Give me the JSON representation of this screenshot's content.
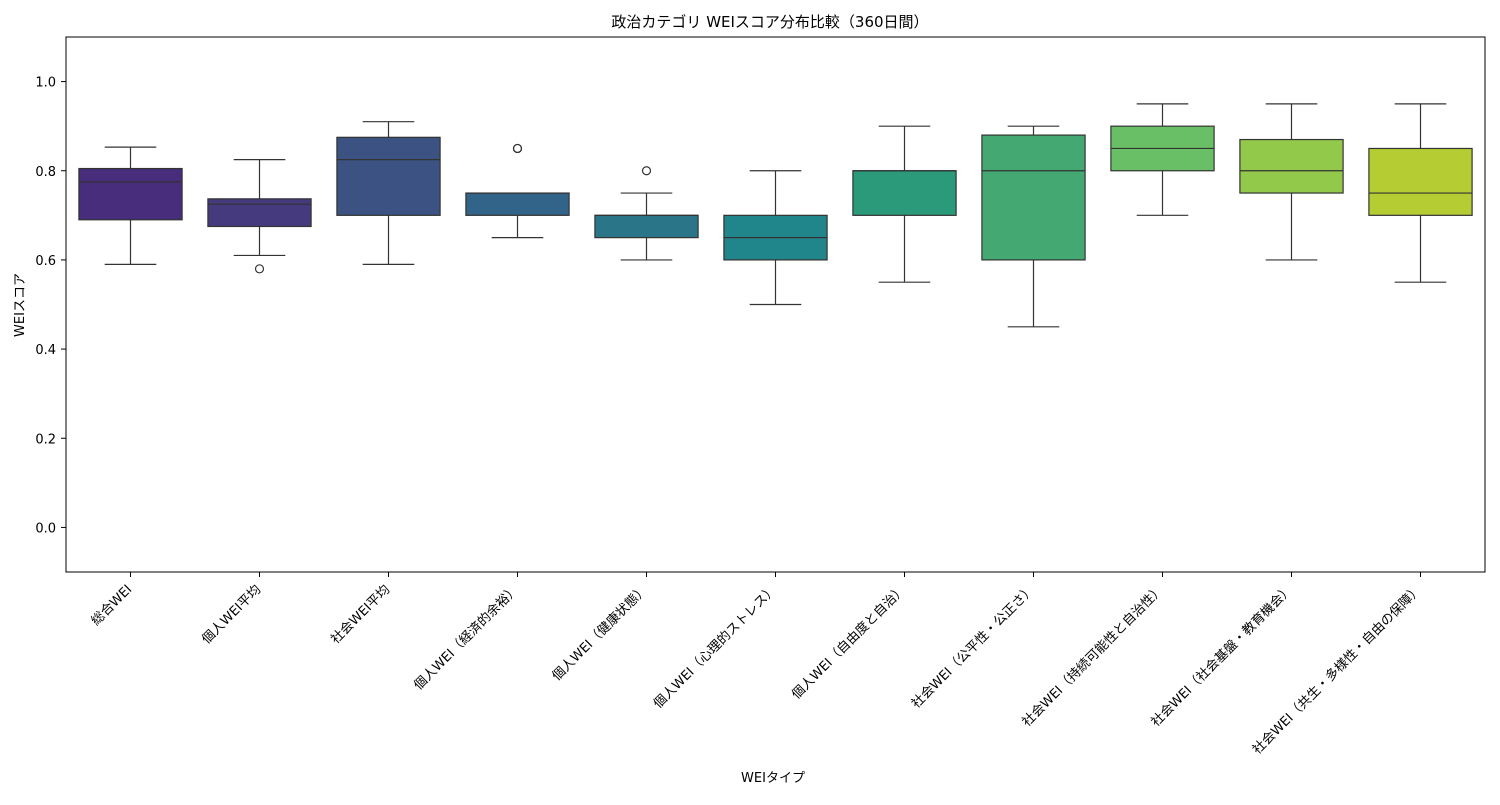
{
  "chart_data": {
    "type": "box",
    "title": "政治カテゴリ WEIスコア分布比較（360日間）",
    "xlabel": "WEIタイプ",
    "ylabel": "WEIスコア",
    "ylim": [
      -0.1,
      1.1
    ],
    "yticks": [
      "0.0",
      "0.2",
      "0.4",
      "0.6",
      "0.8",
      "1.0"
    ],
    "grid": false,
    "categories": [
      "総合WEI",
      "個人WEI平均",
      "社会WEI平均",
      "個人WEI（経済的余裕）",
      "個人WEI（健康状態）",
      "個人WEI（心理的ストレス）",
      "個人WEI（自由度と自治）",
      "社会WEI（公平性・公正さ）",
      "社会WEI（持続可能性と自治性）",
      "社会WEI（社会基盤・教育機会）",
      "社会WEI（共生・多様性・自由の保障）"
    ],
    "boxes": [
      {
        "whisker_low": 0.59,
        "q1": 0.69,
        "median": 0.775,
        "q3": 0.805,
        "whisker_high": 0.853,
        "outliers": [],
        "color": "#472d7b"
      },
      {
        "whisker_low": 0.61,
        "q1": 0.675,
        "median": 0.725,
        "q3": 0.737,
        "whisker_high": 0.825,
        "outliers": [
          0.58
        ],
        "color": "#463a7e"
      },
      {
        "whisker_low": 0.59,
        "q1": 0.7,
        "median": 0.825,
        "q3": 0.875,
        "whisker_high": 0.91,
        "outliers": [],
        "color": "#3b5283"
      },
      {
        "whisker_low": 0.65,
        "q1": 0.7,
        "median": 0.75,
        "q3": 0.75,
        "whisker_high": 0.75,
        "outliers": [
          0.85,
          0.85
        ],
        "color": "#32648a"
      },
      {
        "whisker_low": 0.6,
        "q1": 0.65,
        "median": 0.7,
        "q3": 0.7,
        "whisker_high": 0.75,
        "outliers": [
          0.8
        ],
        "color": "#2b7589"
      },
      {
        "whisker_low": 0.5,
        "q1": 0.6,
        "median": 0.65,
        "q3": 0.7,
        "whisker_high": 0.8,
        "outliers": [],
        "color": "#21868b"
      },
      {
        "whisker_low": 0.55,
        "q1": 0.7,
        "median": 0.8,
        "q3": 0.8,
        "whisker_high": 0.9,
        "outliers": [],
        "color": "#2a9a7a"
      },
      {
        "whisker_low": 0.45,
        "q1": 0.6,
        "median": 0.8,
        "q3": 0.88,
        "whisker_high": 0.9,
        "outliers": [],
        "color": "#43a871"
      },
      {
        "whisker_low": 0.7,
        "q1": 0.8,
        "median": 0.85,
        "q3": 0.9,
        "whisker_high": 0.95,
        "outliers": [],
        "color": "#69bf65"
      },
      {
        "whisker_low": 0.6,
        "q1": 0.75,
        "median": 0.8,
        "q3": 0.87,
        "whisker_high": 0.95,
        "outliers": [],
        "color": "#92c94b"
      },
      {
        "whisker_low": 0.55,
        "q1": 0.7,
        "median": 0.75,
        "q3": 0.85,
        "whisker_high": 0.95,
        "outliers": [],
        "color": "#b5cc33"
      }
    ]
  }
}
